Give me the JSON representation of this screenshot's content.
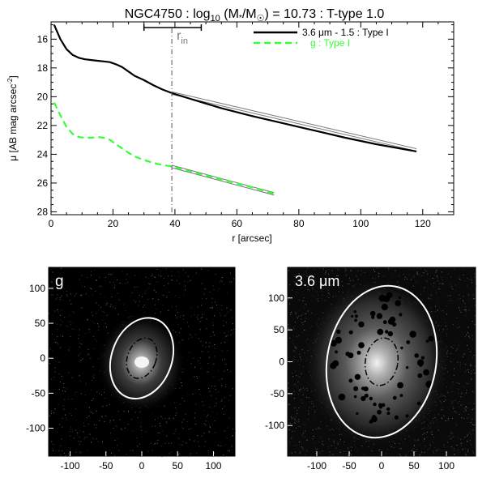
{
  "chart_data": [
    {
      "type": "line",
      "title_parts": {
        "galaxy": "NGC4750",
        "sep1": " : ",
        "log": "log",
        "log_sub": "10",
        "mass_open": " (M",
        "star": "*",
        "slash": "/M",
        "sun": "☉",
        "mass_value": ") = 10.73",
        "ttype": " : T-type 1.0"
      },
      "xlabel": "r [arcsec]",
      "ylabel_parts": {
        "mu": "μ",
        "unit": " [AB mag arcsec",
        "exp": "-2",
        "close": "]"
      },
      "xlim": [
        0,
        130
      ],
      "ylim": [
        28.2,
        14.8
      ],
      "y_reversed": true,
      "x_ticks": [
        0,
        20,
        40,
        60,
        80,
        100,
        120
      ],
      "y_ticks": [
        16,
        18,
        20,
        22,
        24,
        26,
        28
      ],
      "legend_position": "top-right",
      "rin": {
        "label": "r",
        "sub": "in",
        "x": 39,
        "x_range": [
          30,
          48.5
        ]
      },
      "series": [
        {
          "name": "3.6 μm - 1.5 : Type I",
          "color": "#000000",
          "style": "solid",
          "x": [
            1,
            3,
            5,
            7,
            9,
            11,
            13,
            15,
            17,
            19,
            21,
            23,
            25,
            27,
            30,
            33,
            36,
            39,
            45,
            55,
            65,
            75,
            85,
            95,
            105,
            118
          ],
          "y": [
            15.0,
            16.0,
            16.7,
            17.1,
            17.3,
            17.4,
            17.45,
            17.5,
            17.55,
            17.6,
            17.75,
            17.95,
            18.25,
            18.55,
            18.85,
            19.2,
            19.5,
            19.75,
            20.15,
            20.8,
            21.35,
            21.85,
            22.35,
            22.85,
            23.3,
            23.8
          ],
          "fit": {
            "x": [
              39,
              118
            ],
            "y": [
              19.75,
              23.7
            ]
          }
        },
        {
          "name": "g : Type I",
          "color": "#33ff33",
          "style": "dashed",
          "x": [
            1,
            3,
            5,
            7,
            9,
            11,
            13,
            15,
            17,
            19,
            21,
            23,
            25,
            27,
            30,
            33,
            36,
            39,
            45,
            55,
            65,
            72
          ],
          "y": [
            20.4,
            21.3,
            22.1,
            22.6,
            22.8,
            22.85,
            22.85,
            22.8,
            22.85,
            23.0,
            23.3,
            23.6,
            23.9,
            24.15,
            24.4,
            24.6,
            24.75,
            24.85,
            25.2,
            25.75,
            26.3,
            26.75
          ],
          "fit": {
            "x": [
              39,
              72
            ],
            "y": [
              24.85,
              26.75
            ]
          }
        }
      ]
    },
    {
      "type": "image",
      "band_label": "g",
      "xlim": [
        -130,
        130
      ],
      "ylim": [
        -140,
        130
      ],
      "x_ticks": [
        -100,
        -50,
        0,
        50,
        100
      ],
      "y_ticks": [
        -100,
        -50,
        0,
        50,
        100
      ],
      "outer_ellipse": {
        "a": 58,
        "b": 42,
        "angle": 20
      },
      "inner_ellipse": {
        "a": 29,
        "b": 20,
        "angle": 20
      }
    },
    {
      "type": "image",
      "band_label": "3.6 μm",
      "xlim": [
        -145,
        145
      ],
      "ylim": [
        -148,
        148
      ],
      "x_ticks": [
        -100,
        -50,
        0,
        50,
        100
      ],
      "y_ticks": [
        -100,
        -50,
        0,
        50,
        100
      ],
      "outer_ellipse": {
        "a": 118,
        "b": 84,
        "angle": 10
      },
      "inner_ellipse": {
        "a": 37,
        "b": 25,
        "angle": 10
      }
    }
  ]
}
